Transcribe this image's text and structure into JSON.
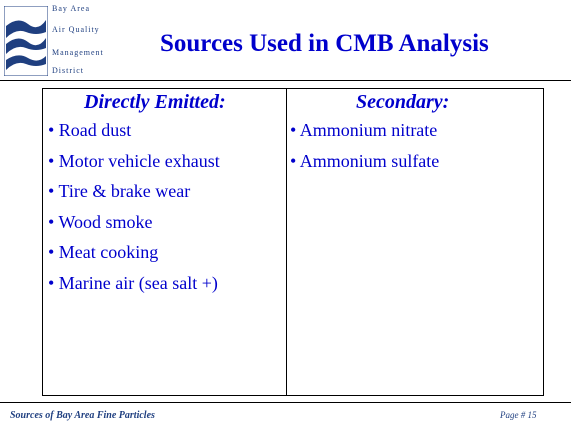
{
  "logo": [
    "Bay Area",
    "Air Quality",
    "Management",
    "District"
  ],
  "title": "Sources Used in CMB Analysis",
  "columns": [
    {
      "heading": "Directly Emitted:",
      "items": [
        "• Road dust",
        "• Motor vehicle exhaust",
        "• Tire & brake wear",
        "• Wood smoke",
        "• Meat cooking",
        "• Marine air (sea salt +)"
      ]
    },
    {
      "heading": "Secondary:",
      "items": [
        "• Ammonium nitrate",
        "• Ammonium sulfate"
      ]
    }
  ],
  "footer": {
    "left": "Sources of Bay Area Fine Particles",
    "right": "Page # 15"
  }
}
